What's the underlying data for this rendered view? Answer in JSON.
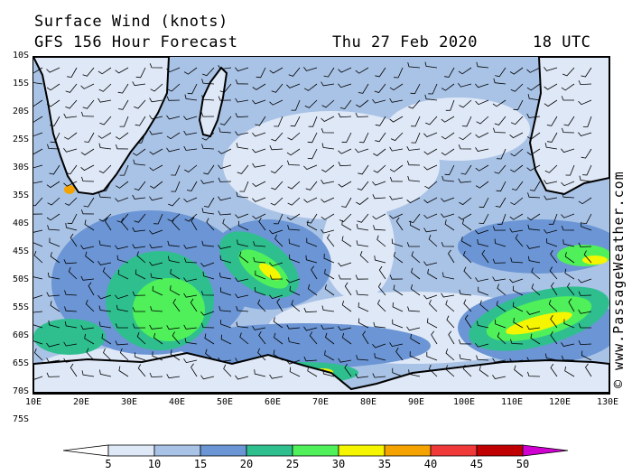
{
  "header": {
    "title": "Surface Wind (knots)",
    "subtitle": "GFS 156 Hour Forecast",
    "date": "Thu 27 Feb 2020",
    "time": "18 UTC"
  },
  "credit": "© www.PassageWeather.com",
  "axes": {
    "lat_labels": [
      "10S",
      "15S",
      "20S",
      "25S",
      "30S",
      "35S",
      "40S",
      "45S",
      "50S",
      "55S",
      "60S",
      "65S",
      "70S",
      "75S"
    ],
    "lon_labels": [
      "10E",
      "20E",
      "30E",
      "40E",
      "50E",
      "60E",
      "70E",
      "80E",
      "90E",
      "100E",
      "110E",
      "120E",
      "130E"
    ]
  },
  "legend": {
    "labels": [
      "5",
      "10",
      "15",
      "20",
      "25",
      "30",
      "35",
      "40",
      "45",
      "50"
    ],
    "colors": [
      "#dfe8f7",
      "#a9c3e6",
      "#6b95d4",
      "#2fbf8f",
      "#4ff05a",
      "#f5f500",
      "#f5a300",
      "#f03a3a",
      "#c00000",
      "#d000d0"
    ]
  }
}
